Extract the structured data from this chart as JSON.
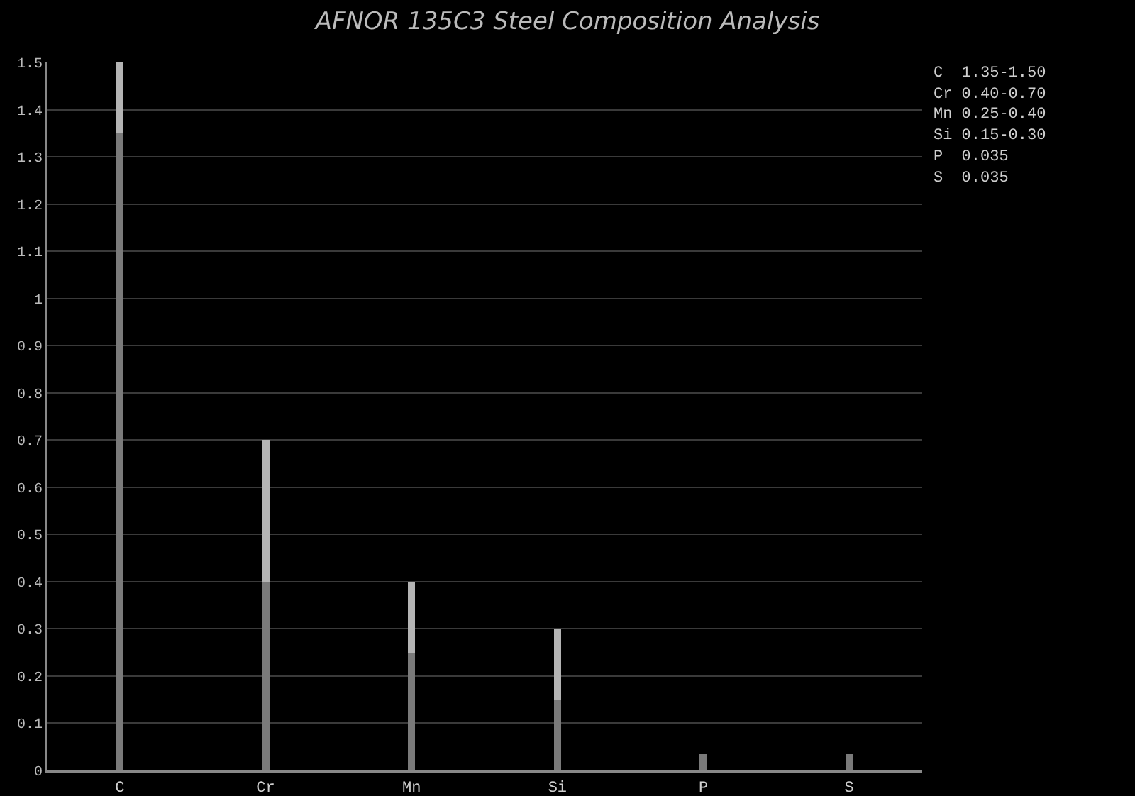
{
  "chart_data": {
    "type": "bar",
    "title": "AFNOR 135C3 Steel Composition Analysis",
    "categories": [
      "C",
      "Cr",
      "Mn",
      "Si",
      "P",
      "S"
    ],
    "stacked": true,
    "series": [
      {
        "color": "#7a7a7a",
        "values": [
          1.35,
          0.4,
          0.25,
          0.15,
          0.035,
          0.035
        ]
      },
      {
        "color": "#b4b4b4",
        "values": [
          0.15,
          0.3,
          0.15,
          0.15,
          null,
          null
        ]
      }
    ],
    "ylim": [
      0,
      1.5
    ],
    "yticks": [
      0,
      0.1,
      0.2,
      0.3,
      0.4,
      0.5,
      0.6,
      0.7,
      0.8,
      0.9,
      1,
      1.1,
      1.2,
      1.3,
      1.4,
      1.5
    ],
    "grid": "y",
    "annotations": [
      "C  1.35-1.50",
      "Cr 0.40-0.70",
      "Mn 0.25-0.40",
      "Si 0.15-0.30",
      "P  0.035",
      "S  0.035"
    ]
  }
}
